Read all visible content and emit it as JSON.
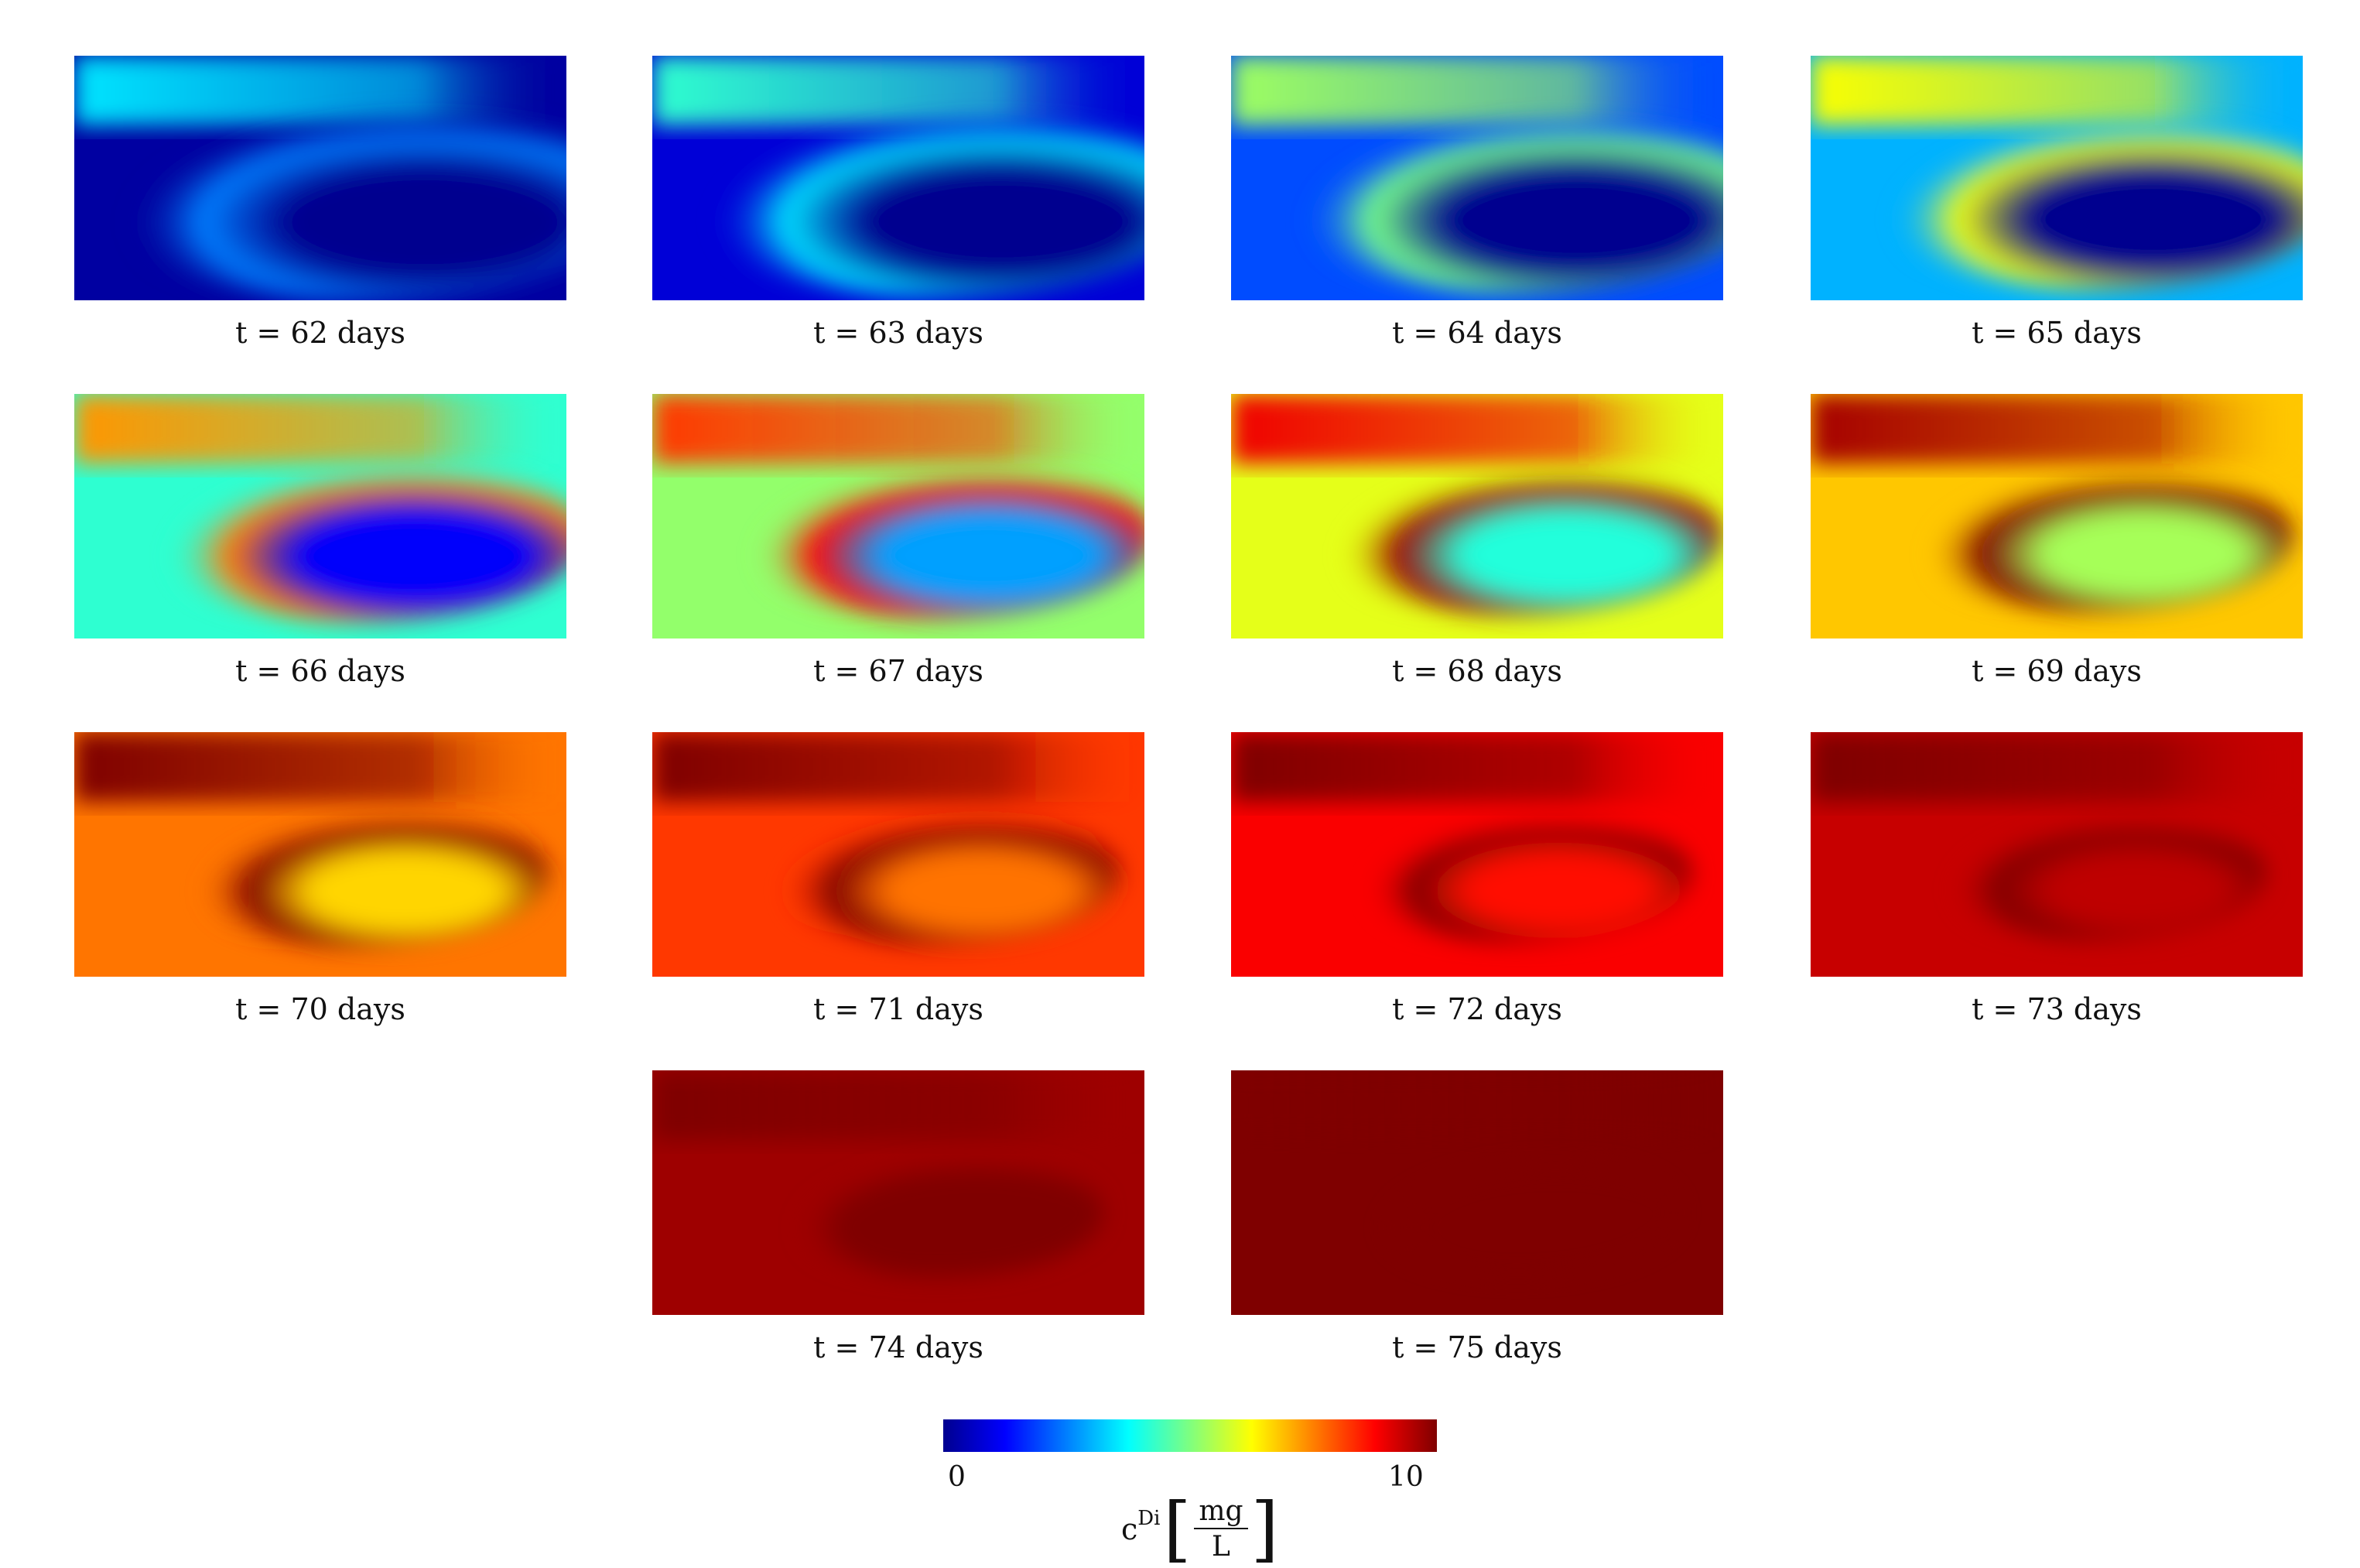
{
  "panels": [
    {
      "caption": "t = 62 days",
      "level": 0.0
    },
    {
      "caption": "t = 63 days",
      "level": 0.08
    },
    {
      "caption": "t = 64 days",
      "level": 0.2
    },
    {
      "caption": "t = 65 days",
      "level": 0.3
    },
    {
      "caption": "t = 66 days",
      "level": 0.42
    },
    {
      "caption": "t = 67 days",
      "level": 0.52
    },
    {
      "caption": "t = 68 days",
      "level": 0.6
    },
    {
      "caption": "t = 69 days",
      "level": 0.68
    },
    {
      "caption": "t = 70 days",
      "level": 0.76
    },
    {
      "caption": "t = 71 days",
      "level": 0.82
    },
    {
      "caption": "t = 72 days",
      "level": 0.88
    },
    {
      "caption": "t = 73 days",
      "level": 0.93
    },
    {
      "caption": "t = 74 days",
      "level": 0.97
    },
    {
      "caption": "t = 75 days",
      "level": 1.0
    }
  ],
  "colorbar": {
    "min_label": "0",
    "max_label": "10",
    "symbol": "c",
    "superscript": "Di",
    "unit_numerator": "mg",
    "unit_denominator": "L",
    "colormap": [
      "#00008f",
      "#0000ff",
      "#007fff",
      "#00ffff",
      "#7fff7f",
      "#ffff00",
      "#ff7f00",
      "#ff0000",
      "#7f0000"
    ]
  }
}
